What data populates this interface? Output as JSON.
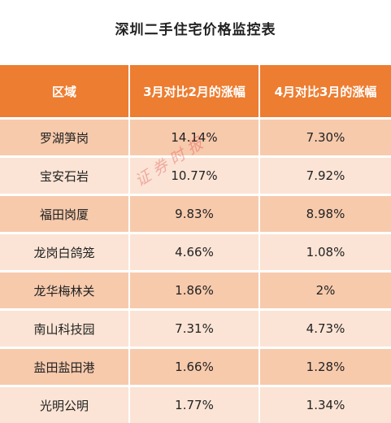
{
  "title": "深圳二手住宅价格监控表",
  "headers": [
    "区域",
    "3月对比2月的涨幅",
    "4月对比3月的涨幅"
  ],
  "rows": [
    [
      "罗湖笋岗",
      "14.14%",
      "7.30%"
    ],
    [
      "宝安石岩",
      "10.77%",
      "7.92%"
    ],
    [
      "福田岗厦",
      "9.83%",
      "8.98%"
    ],
    [
      "龙岗白鸽笼",
      "4.66%",
      "1.08%"
    ],
    [
      "龙华梅林关",
      "1.86%",
      "2%"
    ],
    [
      "南山科技园",
      "7.31%",
      "4.73%"
    ],
    [
      "盐田盐田港",
      "1.66%",
      "1.28%"
    ],
    [
      "光明公明",
      "1.77%",
      "1.34%"
    ]
  ],
  "watermark": "证券时报",
  "colors": {
    "header_bg": "#ed7d31",
    "row_odd": "#f7caac",
    "row_even": "#fbe4d5"
  }
}
